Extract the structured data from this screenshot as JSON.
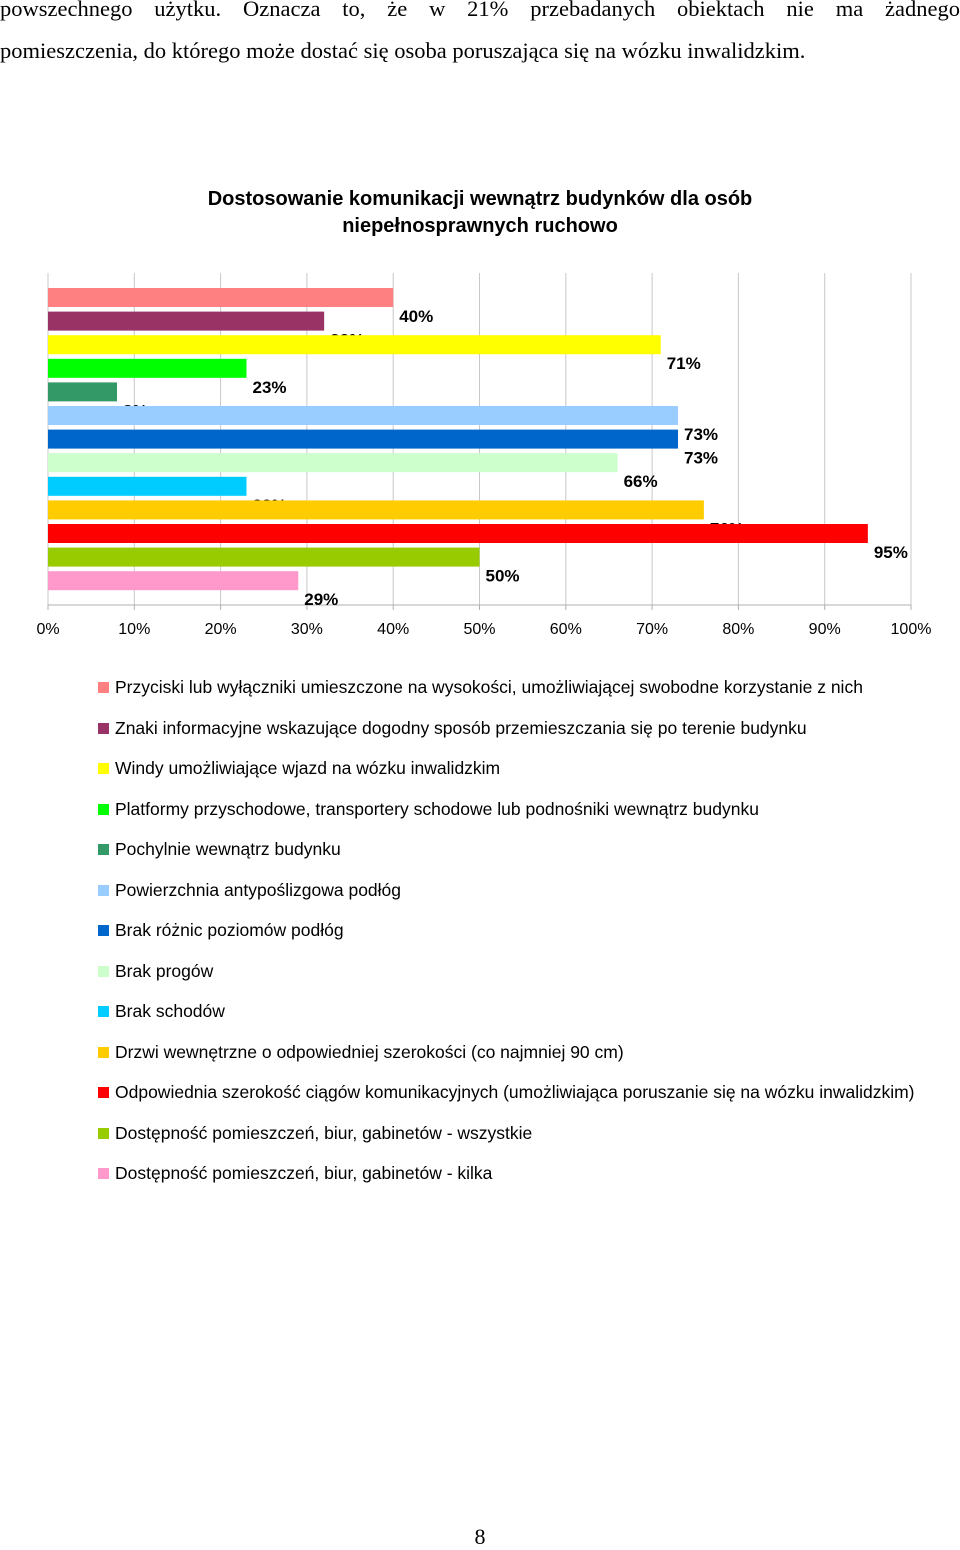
{
  "document": {
    "intro_line1": "powszechnego użytku. Oznacza to, że w 21% przebadanych obiektach nie ma żadnego",
    "intro_line2": "pomieszczenia, do którego może dostać się osoba poruszająca się na wózku inwalidzkim.",
    "page_number": "8"
  },
  "chart_data": {
    "type": "bar",
    "orientation": "horizontal",
    "title_line1": "Dostosowanie komunikacji wewnątrz budynków dla osób",
    "title_line2": "niepełnosprawnych ruchowo",
    "xlim": [
      0,
      100
    ],
    "x_ticks": [
      "0%",
      "10%",
      "20%",
      "30%",
      "40%",
      "50%",
      "60%",
      "70%",
      "80%",
      "90%",
      "100%"
    ],
    "grid": "vertical",
    "legend_position": "bottom",
    "series": [
      {
        "name": "Przyciski lub wyłączniki umieszczone na wysokości, umożliwiającej swobodne korzystanie z nich",
        "value": 40,
        "label": "40%",
        "color": "#ff8080"
      },
      {
        "name": "Znaki informacyjne wskazujące dogodny sposób przemieszczania się po terenie budynku",
        "value": 32,
        "label": "32%",
        "color": "#993366"
      },
      {
        "name": "Windy umożliwiające wjazd na wózku inwalidzkim",
        "value": 71,
        "label": "71%",
        "color": "#ffff00"
      },
      {
        "name": "Platformy przyschodowe, transportery schodowe lub podnośniki wewnątrz budynku",
        "value": 23,
        "label": "23%",
        "color": "#00ff00"
      },
      {
        "name": "Pochylnie wewnątrz budynku",
        "value": 8,
        "label": "8%",
        "color": "#339966"
      },
      {
        "name": "Powierzchnia antypoślizgowa podłóg",
        "value": 73,
        "label": "73%",
        "color": "#99ccff"
      },
      {
        "name": "Brak różnic poziomów podłóg",
        "value": 73,
        "label": "73%",
        "color": "#0066cc"
      },
      {
        "name": "Brak progów",
        "value": 66,
        "label": "66%",
        "color": "#ccffcc"
      },
      {
        "name": "Brak schodów",
        "value": 23,
        "label": "23%",
        "color": "#00ccff"
      },
      {
        "name": "Drzwi wewnętrzne o odpowiedniej szerokości (co najmniej 90 cm)",
        "value": 76,
        "label": "76%",
        "color": "#ffcc00"
      },
      {
        "name": "Odpowiednia szerokość ciągów komunikacyjnych (umożliwiająca poruszanie się na wózku inwalidzkim)",
        "value": 95,
        "label": "95%",
        "color": "#ff0000"
      },
      {
        "name": "Dostępność pomieszczeń, biur, gabinetów - wszystkie",
        "value": 50,
        "label": "50%",
        "color": "#99cc00"
      },
      {
        "name": "Dostępność pomieszczeń, biur, gabinetów - kilka",
        "value": 29,
        "label": "29%",
        "color": "#ff99cc"
      }
    ]
  }
}
